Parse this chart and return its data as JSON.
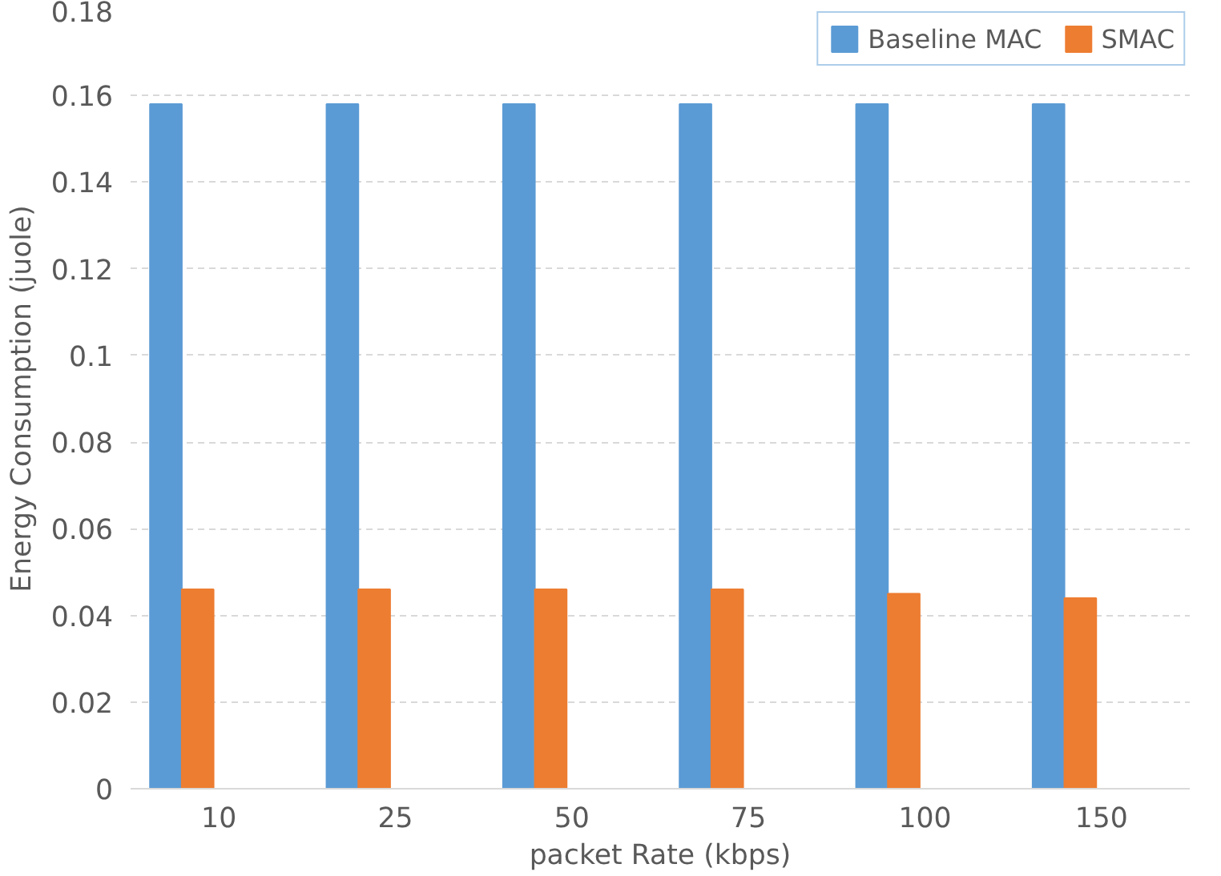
{
  "chart_data": {
    "type": "bar",
    "xlabel": "packet Rate (kbps)",
    "ylabel": "Energy Consumption (juole)",
    "categories": [
      "10",
      "25",
      "50",
      "75",
      "100",
      "150"
    ],
    "series": [
      {
        "name": "Baseline MAC",
        "color": "#5b9bd5",
        "values": [
          0.158,
          0.158,
          0.158,
          0.158,
          0.158,
          0.158
        ]
      },
      {
        "name": "SMAC",
        "color": "#ed7d31",
        "values": [
          0.046,
          0.046,
          0.046,
          0.046,
          0.045,
          0.044
        ]
      }
    ],
    "ylim": [
      0,
      0.18
    ],
    "yticks": [
      0,
      0.02,
      0.04,
      0.06,
      0.08,
      0.1,
      0.12,
      0.14,
      0.16,
      0.18
    ],
    "grid": "y",
    "legend": "top right"
  }
}
